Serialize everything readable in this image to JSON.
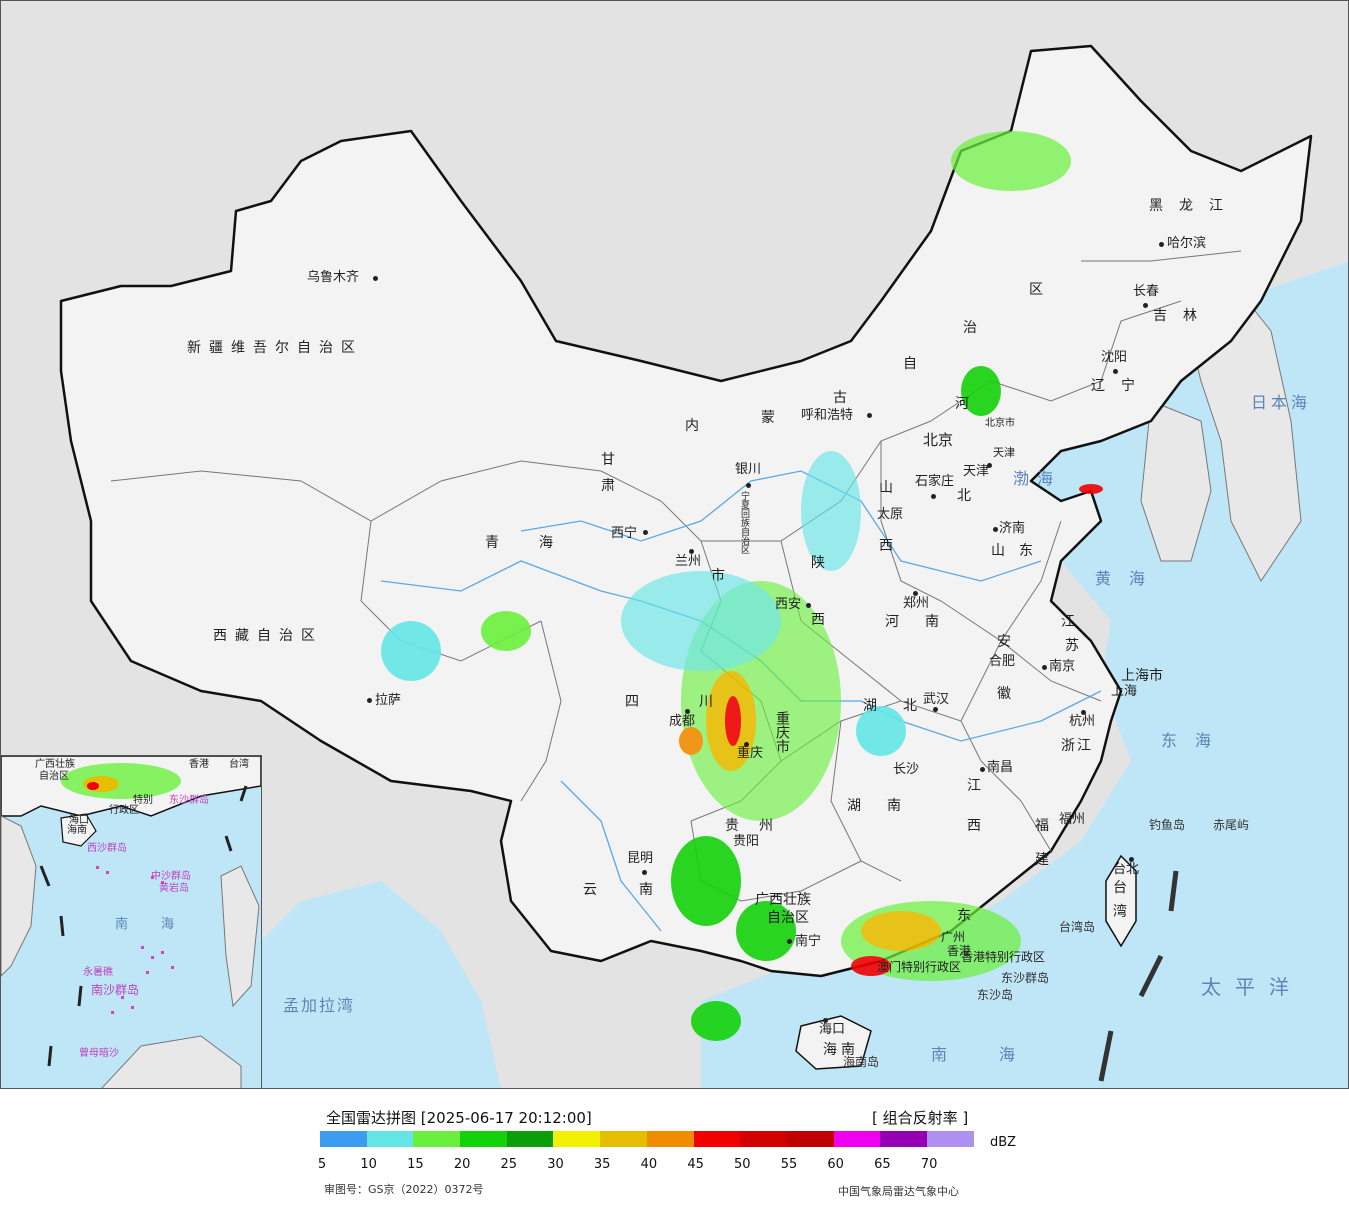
{
  "map": {
    "colors": {
      "land": "#f4f4f4",
      "sea": "#bfe6f7",
      "outside": "#e3e3e3",
      "border": "#111111",
      "river": "#5aa9e6"
    },
    "provinces": [
      {
        "id": "xinjiang",
        "text": "新疆维吾尔自治区"
      },
      {
        "id": "xizang",
        "text": "西藏自治区"
      },
      {
        "id": "qinghai",
        "text": "青海"
      },
      {
        "id": "gansu",
        "text": "甘"
      },
      {
        "id": "neimenggu-1",
        "text": "内"
      },
      {
        "id": "neimenggu-2",
        "text": "蒙"
      },
      {
        "id": "neimenggu-3",
        "text": "古"
      },
      {
        "id": "neimenggu-4",
        "text": "自"
      },
      {
        "id": "neimenggu-5",
        "text": "治"
      },
      {
        "id": "neimenggu-6",
        "text": "区"
      },
      {
        "id": "heilongjiang",
        "text": "黑龙江"
      },
      {
        "id": "jilin",
        "text": "吉林"
      },
      {
        "id": "liaoning",
        "text": "辽宁"
      },
      {
        "id": "hebei-1",
        "text": "河"
      },
      {
        "id": "hebei-2",
        "text": "北"
      },
      {
        "id": "shanxi-1",
        "text": "山"
      },
      {
        "id": "shanxi-2",
        "text": "西"
      },
      {
        "id": "shandong",
        "text": "山东"
      },
      {
        "id": "henan-1",
        "text": "河"
      },
      {
        "id": "henan-2",
        "text": "南"
      },
      {
        "id": "jiangsu-1",
        "text": "江"
      },
      {
        "id": "jiangsu-2",
        "text": "苏"
      },
      {
        "id": "anhui-1",
        "text": "安"
      },
      {
        "id": "anhui-2",
        "text": "徽"
      },
      {
        "id": "shanghai",
        "text": "上海市"
      },
      {
        "id": "zhejiang",
        "text": "浙江"
      },
      {
        "id": "shaanxi-1",
        "text": "陕"
      },
      {
        "id": "shaanxi-2",
        "text": "西"
      },
      {
        "id": "ningxia",
        "text": "宁夏回族自治区"
      },
      {
        "id": "gansu-2",
        "text": "肃"
      },
      {
        "id": "sichuan-1",
        "text": "四"
      },
      {
        "id": "sichuan-2",
        "text": "川"
      },
      {
        "id": "chongqing",
        "text": "重庆市"
      },
      {
        "id": "hubei-1",
        "text": "湖"
      },
      {
        "id": "hubei-2",
        "text": "北"
      },
      {
        "id": "hunan-1",
        "text": "湖"
      },
      {
        "id": "hunan-2",
        "text": "南"
      },
      {
        "id": "jiangxi-1",
        "text": "江"
      },
      {
        "id": "jiangxi-2",
        "text": "西"
      },
      {
        "id": "fujian-1",
        "text": "福"
      },
      {
        "id": "fujian-2",
        "text": "建"
      },
      {
        "id": "guizhou",
        "text": "贵州"
      },
      {
        "id": "yunnan-1",
        "text": "云"
      },
      {
        "id": "yunnan-2",
        "text": "南"
      },
      {
        "id": "guangxi-1",
        "text": "广西壮族"
      },
      {
        "id": "guangxi-2",
        "text": "自治区"
      },
      {
        "id": "guangdong",
        "text": "东"
      },
      {
        "id": "hongkong",
        "text": "香港特别行政区"
      },
      {
        "id": "macau",
        "text": "澳门特别行政区"
      },
      {
        "id": "hainan",
        "text": "海南"
      },
      {
        "id": "taiwan-1",
        "text": "台"
      },
      {
        "id": "taiwan-2",
        "text": "湾"
      },
      {
        "id": "tianjin",
        "text": "天津"
      },
      {
        "id": "lanzhou-city",
        "text": "市"
      }
    ],
    "cities": [
      {
        "id": "urumqi",
        "text": "乌鲁木齐"
      },
      {
        "id": "lhasa",
        "text": "拉萨"
      },
      {
        "id": "xining",
        "text": "西宁"
      },
      {
        "id": "lanzhou",
        "text": "兰州"
      },
      {
        "id": "yinchuan",
        "text": "银川"
      },
      {
        "id": "hohhot",
        "text": "呼和浩特"
      },
      {
        "id": "beijing",
        "text": "北京"
      },
      {
        "id": "beijing-city",
        "text": "北京市"
      },
      {
        "id": "tianjin-city",
        "text": "天津"
      },
      {
        "id": "shijiazhuang",
        "text": "石家庄"
      },
      {
        "id": "taiyuan",
        "text": "太原"
      },
      {
        "id": "jinan",
        "text": "济南"
      },
      {
        "id": "zhengzhou",
        "text": "郑州"
      },
      {
        "id": "xian",
        "text": "西安"
      },
      {
        "id": "hefei",
        "text": "合肥"
      },
      {
        "id": "nanjing",
        "text": "南京"
      },
      {
        "id": "shanghai-city",
        "text": "上海"
      },
      {
        "id": "hangzhou",
        "text": "杭州"
      },
      {
        "id": "wuhan",
        "text": "武汉"
      },
      {
        "id": "changsha",
        "text": "长沙"
      },
      {
        "id": "nanchang",
        "text": "南昌"
      },
      {
        "id": "fuzhou",
        "text": "福州"
      },
      {
        "id": "chengdu",
        "text": "成都"
      },
      {
        "id": "chongqing-city",
        "text": "重庆"
      },
      {
        "id": "guiyang",
        "text": "贵阳"
      },
      {
        "id": "kunming",
        "text": "昆明"
      },
      {
        "id": "nanning",
        "text": "南宁"
      },
      {
        "id": "guangzhou",
        "text": "广州"
      },
      {
        "id": "haikou",
        "text": "海口"
      },
      {
        "id": "taibei",
        "text": "台北"
      },
      {
        "id": "shenyang",
        "text": "沈阳"
      },
      {
        "id": "changchun",
        "text": "长春"
      },
      {
        "id": "harbin",
        "text": "哈尔滨"
      },
      {
        "id": "xianggang",
        "text": "香港"
      }
    ],
    "seas": [
      {
        "id": "bohai",
        "text": "渤海"
      },
      {
        "id": "huanghai",
        "text": "黄海"
      },
      {
        "id": "donghai",
        "text": "东海"
      },
      {
        "id": "nanhai",
        "text": "南海"
      },
      {
        "id": "taipingyang",
        "text": "太平洋"
      },
      {
        "id": "ribenhai",
        "text": "日本海"
      },
      {
        "id": "mengjialawan",
        "text": "孟加拉湾"
      }
    ],
    "islands": [
      {
        "id": "diaoyudao",
        "text": "钓鱼岛"
      },
      {
        "id": "chiweiyu",
        "text": "赤尾屿"
      },
      {
        "id": "taiwandao",
        "text": "台湾岛"
      },
      {
        "id": "dongshaqundao",
        "text": "东沙群岛"
      },
      {
        "id": "dongshadao",
        "text": "东沙岛"
      },
      {
        "id": "hainandao",
        "text": "海南岛"
      }
    ],
    "inset": {
      "labels": [
        {
          "id": "inset-guangxi",
          "text": "广西壮族"
        },
        {
          "id": "inset-zizhiqu",
          "text": "自治区"
        },
        {
          "id": "inset-xianggang",
          "text": "香港"
        },
        {
          "id": "inset-taiwan",
          "text": "台湾"
        },
        {
          "id": "inset-tebie",
          "text": "特别"
        },
        {
          "id": "inset-xingzhengqu",
          "text": "行政区"
        },
        {
          "id": "inset-dongsha",
          "text": "东沙群岛"
        },
        {
          "id": "inset-haikou",
          "text": "海口"
        },
        {
          "id": "inset-hainan",
          "text": "海南"
        },
        {
          "id": "inset-xisha",
          "text": "西沙群岛"
        },
        {
          "id": "inset-zhongsha",
          "text": "中沙群岛"
        },
        {
          "id": "inset-huangyan",
          "text": "黄岩岛"
        },
        {
          "id": "inset-nan",
          "text": "南"
        },
        {
          "id": "inset-hai",
          "text": "海"
        },
        {
          "id": "inset-nansha",
          "text": "南沙群岛"
        },
        {
          "id": "inset-yongshu",
          "text": "永暑礁"
        },
        {
          "id": "inset-zengmu",
          "text": "曾母暗沙"
        }
      ]
    }
  },
  "legend": {
    "title": "全国雷达拼图 [2025-06-17 20:12:00]",
    "product": "[ 组合反射率 ]",
    "unit": "dBZ",
    "colors": [
      "#3d9cf0",
      "#64e6e6",
      "#6af03c",
      "#14d20a",
      "#0a9e0a",
      "#f0f000",
      "#e6be00",
      "#f08c00",
      "#f00000",
      "#d20000",
      "#c00000",
      "#f000f0",
      "#9600b4",
      "#ad90f0"
    ],
    "ticks": [
      "5",
      "10",
      "15",
      "20",
      "25",
      "30",
      "35",
      "40",
      "45",
      "50",
      "55",
      "60",
      "65",
      "70"
    ],
    "review_number": "审图号：GS京（2022）0372号",
    "agency": "中国气象局雷达气象中心"
  }
}
